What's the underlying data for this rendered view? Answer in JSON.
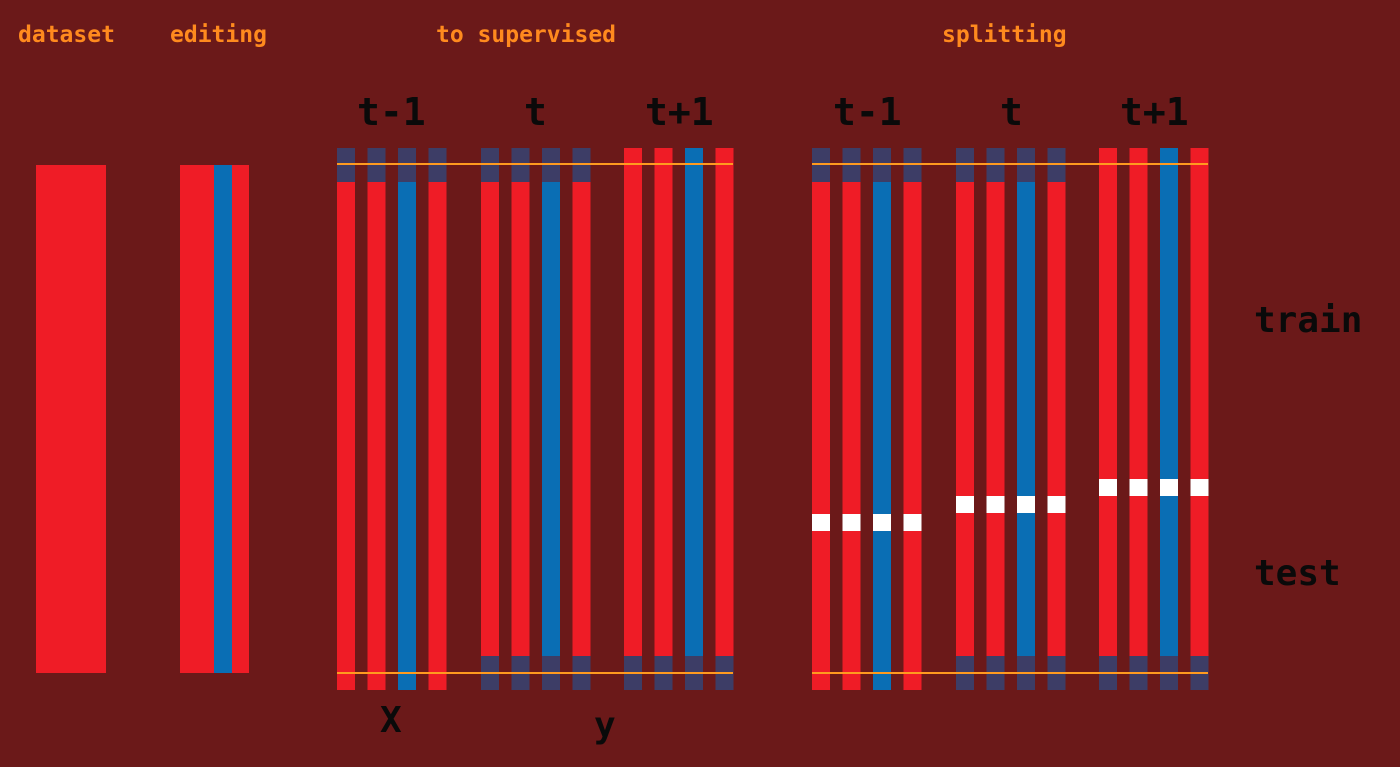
{
  "titles": {
    "dataset": "dataset",
    "editing": "editing",
    "to_supervised": "to supervised",
    "splitting": "splitting"
  },
  "steps": {
    "t_minus_1": "t-1",
    "t": "t",
    "t_plus_1": "t+1"
  },
  "labels": {
    "x": "X",
    "y": "y",
    "train": "train",
    "test": "test"
  },
  "colors": {
    "background": "#6b1919",
    "feature_column": "#ef1c26",
    "target_column": "#0a6eb4",
    "shift_padding": "#3d3d66",
    "boundary_line": "#ff9a1f",
    "split_marker": "#ffffff",
    "title_text": "#ff8a1e",
    "label_text": "#0a0a0a"
  },
  "columns": {
    "per_group": [
      "feature",
      "feature",
      "target",
      "feature"
    ],
    "groups": [
      "t-1",
      "t",
      "t+1"
    ],
    "t_minus_1_shift": "padding at top",
    "t_shift": "padding at top and bottom",
    "t_plus_1_shift": "padding at bottom"
  }
}
